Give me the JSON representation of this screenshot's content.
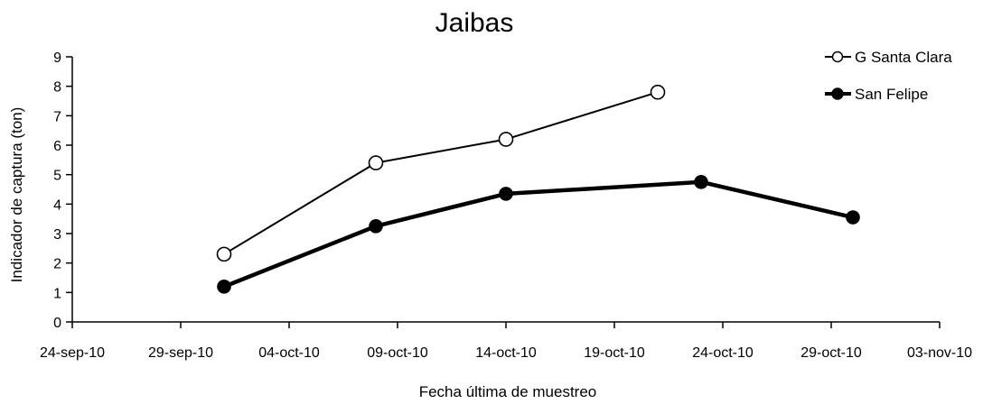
{
  "chart_data": {
    "type": "line",
    "title": "Jaibas",
    "xlabel": "Fecha última de muestreo",
    "ylabel": "Indicador de captura (ton)",
    "x_ticks": [
      "24-sep-10",
      "29-sep-10",
      "04-oct-10",
      "09-oct-10",
      "14-oct-10",
      "19-oct-10",
      "24-oct-10",
      "29-oct-10",
      "03-nov-10"
    ],
    "xlim": [
      "2010-09-24",
      "2010-11-03"
    ],
    "ylim": [
      0,
      9
    ],
    "y_ticks": [
      0,
      1,
      2,
      3,
      4,
      5,
      6,
      7,
      8,
      9
    ],
    "grid": false,
    "legend_position": "top-right",
    "series": [
      {
        "name": "G Santa Clara",
        "marker": "open-circle",
        "color": "#000000",
        "points": [
          {
            "x": "2010-10-01",
            "y": 2.3
          },
          {
            "x": "2010-10-08",
            "y": 5.4
          },
          {
            "x": "2010-10-14",
            "y": 6.2
          },
          {
            "x": "2010-10-21",
            "y": 7.8
          }
        ]
      },
      {
        "name": "San Felipe",
        "marker": "filled-circle",
        "color": "#000000",
        "points": [
          {
            "x": "2010-10-01",
            "y": 1.2
          },
          {
            "x": "2010-10-08",
            "y": 3.25
          },
          {
            "x": "2010-10-14",
            "y": 4.35
          },
          {
            "x": "2010-10-23",
            "y": 4.75
          },
          {
            "x": "2010-10-30",
            "y": 3.55
          }
        ]
      }
    ]
  }
}
